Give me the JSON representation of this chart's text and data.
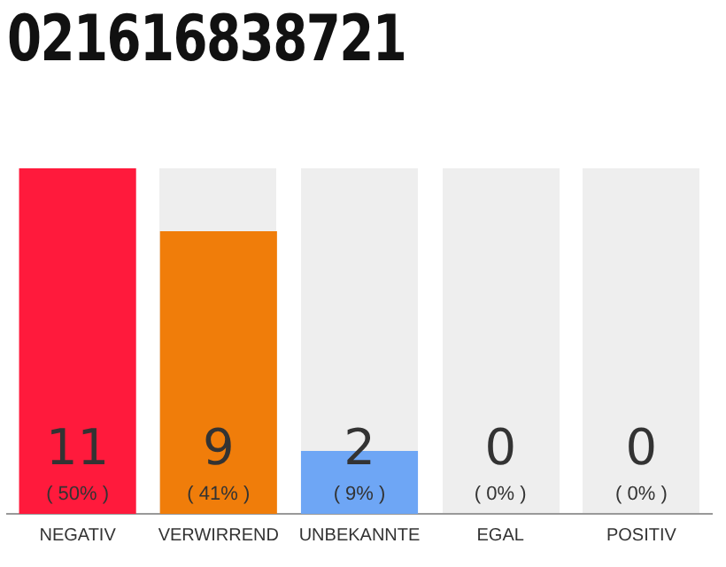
{
  "chart_data": {
    "type": "bar",
    "title": "021616838721",
    "categories": [
      "NEGATIV",
      "VERWIRREND",
      "UNBEKANNTE",
      "EGAL",
      "POSITIV"
    ],
    "values": [
      11,
      9,
      2,
      0,
      0
    ],
    "colors": [
      "#ff1a3c",
      "#f07d0a",
      "#6ea6f5",
      "#6ea6f5",
      "#6ea6f5"
    ],
    "data_labels": true,
    "annotations": [
      "( 50% )",
      "( 41% )",
      "( 9% )",
      "( 0% )",
      "( 0% )"
    ],
    "grid": false,
    "legend": false
  }
}
